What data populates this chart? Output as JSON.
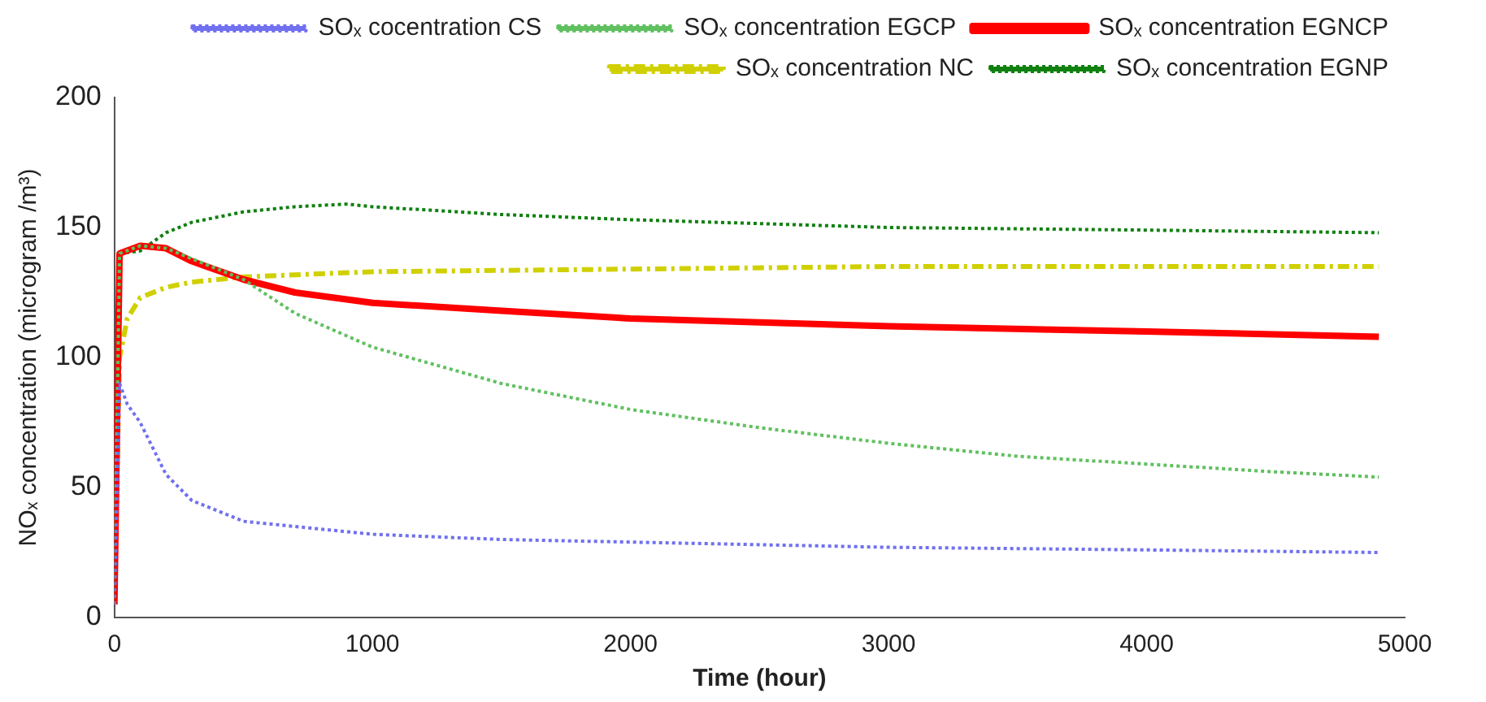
{
  "chart_data": {
    "type": "line",
    "xlabel": "Time (hour)",
    "ylabel": "NOₓ concentration (microgram /m³)",
    "xlim": [
      0,
      5000
    ],
    "xticks": [
      0,
      1000,
      2000,
      3000,
      4000,
      5000
    ],
    "ylim": [
      0,
      200
    ],
    "yticks": [
      0,
      50,
      100,
      150,
      200
    ],
    "grid": false,
    "legend": "top right",
    "marker": "none",
    "series": [
      {
        "name": "SOₓ cocentration CS",
        "color": "#7070f0",
        "line_style": "dotted",
        "x": [
          0,
          20,
          50,
          100,
          200,
          300,
          500,
          1000,
          1500,
          2000,
          3000,
          4000,
          4900
        ],
        "values": [
          5,
          90,
          82,
          75,
          55,
          45,
          37,
          32,
          30,
          29,
          27,
          26,
          25
        ]
      },
      {
        "name": "SOₓ concentration EGCP",
        "color": "#60c060",
        "line_style": "dotted",
        "x": [
          0,
          20,
          100,
          200,
          300,
          500,
          700,
          1000,
          1500,
          2000,
          2500,
          3000,
          3500,
          4000,
          4500,
          4900
        ],
        "values": [
          5,
          140,
          143,
          142,
          138,
          130,
          117,
          104,
          90,
          80,
          73,
          67,
          62,
          59,
          56,
          54
        ]
      },
      {
        "name": "SOₓ concentration EGNCP",
        "color": "#ff0000",
        "line_style": "solid",
        "x": [
          0,
          20,
          100,
          200,
          300,
          500,
          700,
          1000,
          1500,
          2000,
          3000,
          4000,
          4900
        ],
        "values": [
          5,
          140,
          143,
          142,
          137,
          130,
          125,
          121,
          118,
          115,
          112,
          110,
          108
        ]
      },
      {
        "name": "SOₓ concentration NC",
        "color": "#d0d000",
        "line_style": "dashed",
        "x": [
          0,
          20,
          50,
          100,
          200,
          300,
          500,
          1000,
          2000,
          3000,
          4900
        ],
        "values": [
          5,
          100,
          115,
          123,
          127,
          129,
          131,
          133,
          134,
          135,
          135
        ]
      },
      {
        "name": "SOₓ concentration EGNP",
        "color": "#108010",
        "line_style": "dotted",
        "x": [
          0,
          20,
          100,
          200,
          300,
          500,
          700,
          900,
          1000,
          1500,
          2000,
          3000,
          4000,
          4900
        ],
        "values": [
          5,
          140,
          141,
          148,
          152,
          156,
          158,
          159,
          158,
          155,
          153,
          150,
          149,
          148
        ]
      }
    ]
  }
}
